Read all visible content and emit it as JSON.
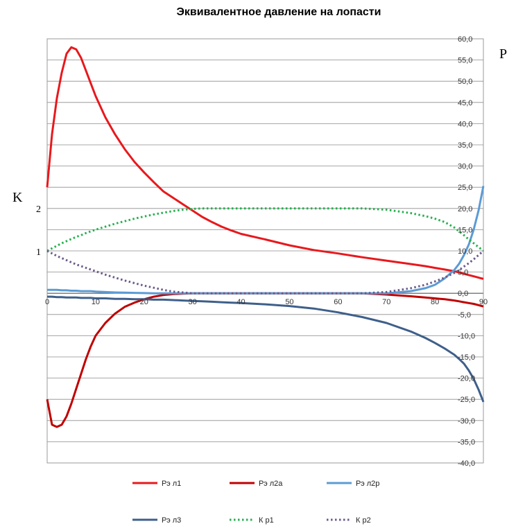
{
  "chart_data": {
    "type": "line",
    "title": "Эквивалентное  давление  на лопасти",
    "x_axis": {
      "min": 0,
      "max": 90,
      "ticks": [
        "0",
        "10",
        "20",
        "30",
        "40",
        "50",
        "60",
        "70",
        "80",
        "90"
      ]
    },
    "y_axis_right": {
      "label": "P",
      "min": -40,
      "max": 60,
      "ticks": [
        "60,0",
        "55,0",
        "50,0",
        "45,0",
        "40,0",
        "35,0",
        "30,0",
        "25,0",
        "20,0",
        "15,0",
        "10,0",
        "5,0",
        "0,0",
        "-5,0",
        "-10,0",
        "-15,0",
        "-20,0",
        "-25,0",
        "-30,0",
        "-35,0",
        "-40,0"
      ]
    },
    "y_axis_left": {
      "label": "K",
      "ticks": [
        "2",
        "1"
      ]
    },
    "grid": "horizontal",
    "legend_position": "bottom",
    "x": [
      0,
      1,
      2,
      3,
      4,
      5,
      6,
      7,
      8,
      9,
      10,
      12,
      14,
      16,
      18,
      20,
      22,
      24,
      26,
      28,
      30,
      32,
      34,
      36,
      38,
      40,
      45,
      50,
      55,
      60,
      65,
      70,
      75,
      78,
      80,
      82,
      84,
      85,
      86,
      87,
      88,
      89,
      90
    ],
    "series": [
      {
        "name": "Рэ л1",
        "color": "#e8181c",
        "style": "solid",
        "values": [
          25,
          37.5,
          46,
          52,
          56.5,
          58,
          57.5,
          55.5,
          52.5,
          49.5,
          46.5,
          41.5,
          37.5,
          34,
          31,
          28.5,
          26.2,
          24,
          22.5,
          21,
          19.5,
          18,
          16.8,
          15.7,
          14.8,
          14,
          12.7,
          11.3,
          10.2,
          9.4,
          8.5,
          7.7,
          6.9,
          6.4,
          6,
          5.6,
          5.2,
          4.9,
          4.6,
          4.3,
          4,
          3.7,
          3.4
        ]
      },
      {
        "name": "Рэ л2а",
        "color": "#c00000",
        "style": "solid",
        "values": [
          -25,
          -31,
          -31.5,
          -31,
          -29,
          -26,
          -22.5,
          -19,
          -15.5,
          -12.5,
          -10,
          -7,
          -4.8,
          -3.2,
          -2.2,
          -1.4,
          -0.8,
          -0.4,
          -0.2,
          -0.1,
          0,
          0,
          0,
          0,
          0,
          0,
          0,
          0,
          0,
          0,
          0,
          -0.3,
          -0.7,
          -1.0,
          -1.2,
          -1.4,
          -1.7,
          -1.9,
          -2.1,
          -2.3,
          -2.5,
          -2.8,
          -3.1
        ]
      },
      {
        "name": "Рэ л2р",
        "color": "#5b9bd5",
        "style": "solid",
        "values": [
          0.8,
          0.8,
          0.8,
          0.7,
          0.7,
          0.6,
          0.6,
          0.5,
          0.5,
          0.5,
          0.4,
          0.3,
          0.2,
          0.15,
          0.1,
          0.05,
          0,
          0,
          0,
          0,
          0,
          0,
          0,
          0,
          0,
          0,
          0,
          0,
          0,
          0,
          0,
          0,
          0.5,
          1.2,
          2,
          3.5,
          5.5,
          7,
          9,
          11.5,
          15,
          19.5,
          25.3
        ]
      },
      {
        "name": "Рэ л3",
        "color": "#3e5f8a",
        "style": "solid",
        "values": [
          -0.8,
          -0.8,
          -0.9,
          -0.9,
          -1,
          -1,
          -1,
          -1.1,
          -1.1,
          -1.1,
          -1.2,
          -1.2,
          -1.3,
          -1.3,
          -1.4,
          -1.4,
          -1.5,
          -1.5,
          -1.6,
          -1.7,
          -1.8,
          -1.9,
          -2,
          -2.1,
          -2.2,
          -2.3,
          -2.6,
          -3,
          -3.6,
          -4.5,
          -5.6,
          -7,
          -9,
          -10.5,
          -11.7,
          -13,
          -14.5,
          -15.5,
          -16.6,
          -18.2,
          -20.2,
          -22.7,
          -25.6
        ]
      },
      {
        "name": "К р1",
        "color": "#23b14d",
        "style": "dotted",
        "values": [
          1,
          1.06,
          1.12,
          1.18,
          1.23,
          1.28,
          1.33,
          1.37,
          1.42,
          1.46,
          1.5,
          1.57,
          1.64,
          1.7,
          1.76,
          1.81,
          1.86,
          1.9,
          1.94,
          1.97,
          1.99,
          2,
          2,
          2,
          2,
          2,
          2,
          2,
          2,
          2,
          2,
          1.97,
          1.89,
          1.82,
          1.76,
          1.68,
          1.55,
          1.46,
          1.37,
          1.27,
          1.18,
          1.09,
          1
        ]
      },
      {
        "name": "К р2",
        "color": "#6b5a8a",
        "style": "dotted",
        "values": [
          1,
          0.94,
          0.88,
          0.83,
          0.78,
          0.73,
          0.68,
          0.64,
          0.6,
          0.56,
          0.52,
          0.44,
          0.37,
          0.3,
          0.24,
          0.18,
          0.13,
          0.08,
          0.04,
          0.02,
          0,
          0,
          0,
          0,
          0,
          0,
          0,
          0,
          0,
          0,
          0,
          0.03,
          0.12,
          0.2,
          0.28,
          0.37,
          0.48,
          0.55,
          0.63,
          0.71,
          0.8,
          0.9,
          1
        ]
      }
    ]
  }
}
